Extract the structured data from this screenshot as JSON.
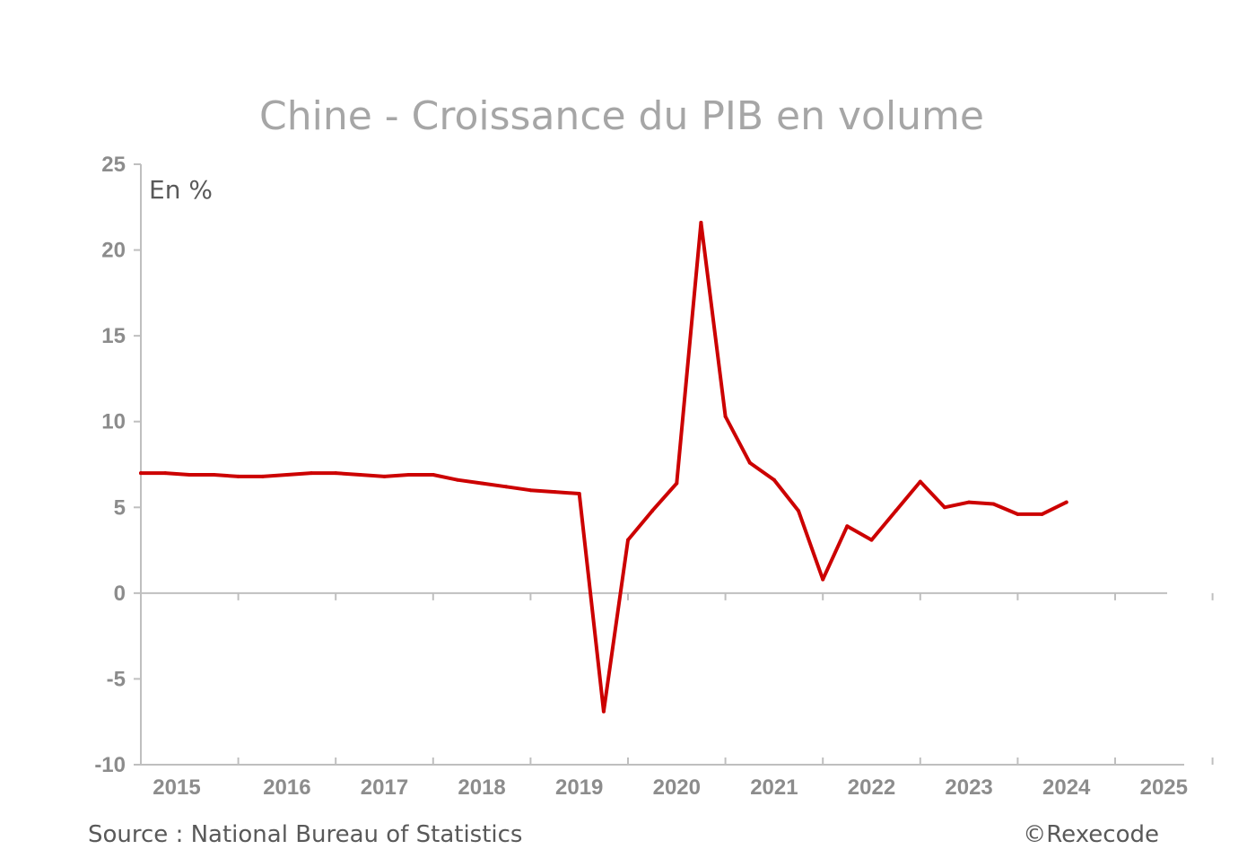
{
  "chart_data": {
    "type": "line",
    "title": "Chine - Croissance du PIB en volume",
    "unit_label": "En %",
    "source": "Source : National Bureau of Statistics",
    "copyright": "©Rexecode",
    "ylim": [
      -10,
      25
    ],
    "yticks": [
      25,
      20,
      15,
      10,
      5,
      0,
      -5,
      -10
    ],
    "ytick_labels": [
      "25",
      "20",
      "15",
      "10",
      "5",
      "0",
      "-5",
      "-10"
    ],
    "xlim": [
      2015,
      2026
    ],
    "xtick_labels": [
      "2015",
      "2016",
      "2017",
      "2018",
      "2019",
      "2020",
      "2021",
      "2022",
      "2023",
      "2024",
      "2025"
    ],
    "grid": false,
    "legend": "none",
    "colors": {
      "series": "#cc0000",
      "axis": "#bfbfbf",
      "ticks": "#8c8c8c",
      "title": "#a6a6a6"
    },
    "series": [
      {
        "x": [
          2015.0,
          2015.25,
          2015.5,
          2015.75,
          2016.0,
          2016.25,
          2016.5,
          2016.75,
          2017.0,
          2017.25,
          2017.5,
          2017.75,
          2018.0,
          2018.25,
          2018.5,
          2018.75,
          2019.0,
          2019.25,
          2019.5,
          2019.75,
          2020.0,
          2020.25,
          2020.5,
          2020.75,
          2021.0,
          2021.25,
          2021.5,
          2021.75,
          2022.0,
          2022.25,
          2022.5,
          2022.75,
          2023.0,
          2023.25,
          2023.5,
          2023.75,
          2024.0,
          2024.25,
          2024.5
        ],
        "values": [
          7.0,
          7.0,
          6.9,
          6.9,
          6.8,
          6.8,
          6.9,
          7.0,
          7.0,
          6.9,
          6.8,
          6.9,
          6.9,
          6.6,
          6.4,
          6.2,
          6.0,
          5.9,
          5.8,
          -6.9,
          3.1,
          4.8,
          6.4,
          21.6,
          10.3,
          7.6,
          6.6,
          4.8,
          0.8,
          3.9,
          3.1,
          4.8,
          6.5,
          5.0,
          5.3,
          5.2,
          4.6,
          4.6,
          5.3
        ]
      }
    ]
  }
}
